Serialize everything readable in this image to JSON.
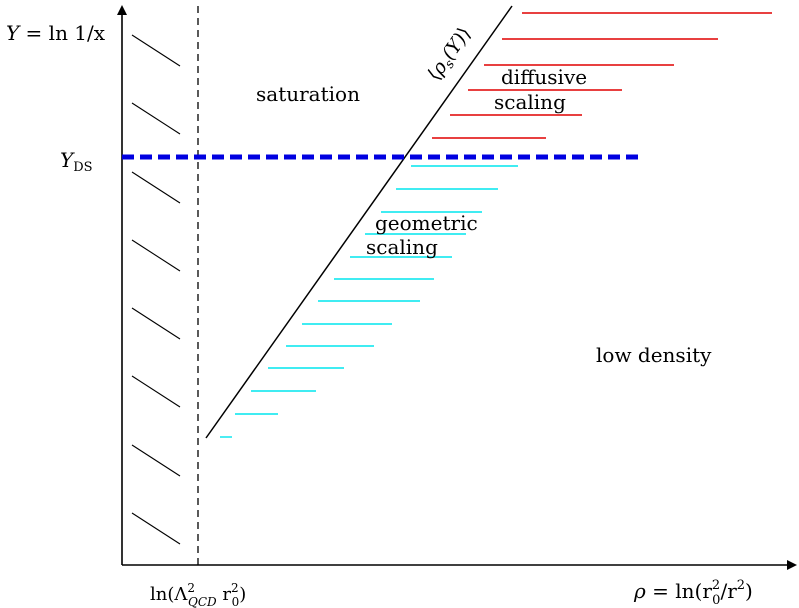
{
  "axes": {
    "y_label_lhs": "Y",
    "y_label_rhs": " = ln 1/x",
    "x_label_lhs": "ρ",
    "x_label_rhs": " = ln(r",
    "x_sub": "0",
    "x_sup": "2",
    "x_mid": "/r",
    "x_sup2": "2",
    "x_close": ")",
    "y_ds_main": "Y",
    "y_ds_sub": "DS",
    "x_tick_pre": "ln(Λ",
    "x_tick_sub": "QCD",
    "x_tick_sup": "2",
    "x_tick_mid": " r",
    "x_tick_sub2": "0",
    "x_tick_sup2": "2",
    "x_tick_close": ")"
  },
  "regions": {
    "saturation": "saturation",
    "low_density": "low density",
    "diffusive_1": "diffusive",
    "diffusive_2": "scaling",
    "geometric_1": "geometric",
    "geometric_2": "scaling"
  },
  "line_label": {
    "open": "⟨",
    "rho": "ρ",
    "sub": "s",
    "arg": "(Y)",
    "close": "⟩"
  },
  "colors": {
    "axis": "#000000",
    "ds_line": "#0000e0",
    "geometric": "#00e5ee",
    "diffusive": "#e00000"
  }
}
